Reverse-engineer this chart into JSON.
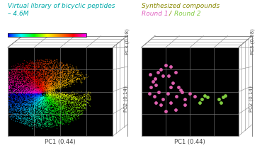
{
  "left_title_line1": "Virtual library of bicyclic peptides",
  "left_title_line2": "– 4.6M",
  "left_title_color": "#6b6b00",
  "right_title_line1": "Synthesized compounds",
  "right_title_line1_color": "#5a5a00",
  "right_title_line2_part1": "Round 1",
  "right_title_line2_sep": " / ",
  "right_title_line2_part2": "Round 2",
  "round1_label_color": "#e060c0",
  "round2_label_color": "#80cc40",
  "xlabel": "PC1 (0.44)",
  "ylabel_pc2": "PC2 (0.14)",
  "ylabel_pc3": "PC3 (0.08)",
  "bg_color": "black",
  "grid_color": "#888888",
  "title_fontsize": 7,
  "axis_label_fontsize": 6,
  "round1_color": "#e060b0",
  "round2_color": "#80cc40",
  "n_library_points": 8000
}
